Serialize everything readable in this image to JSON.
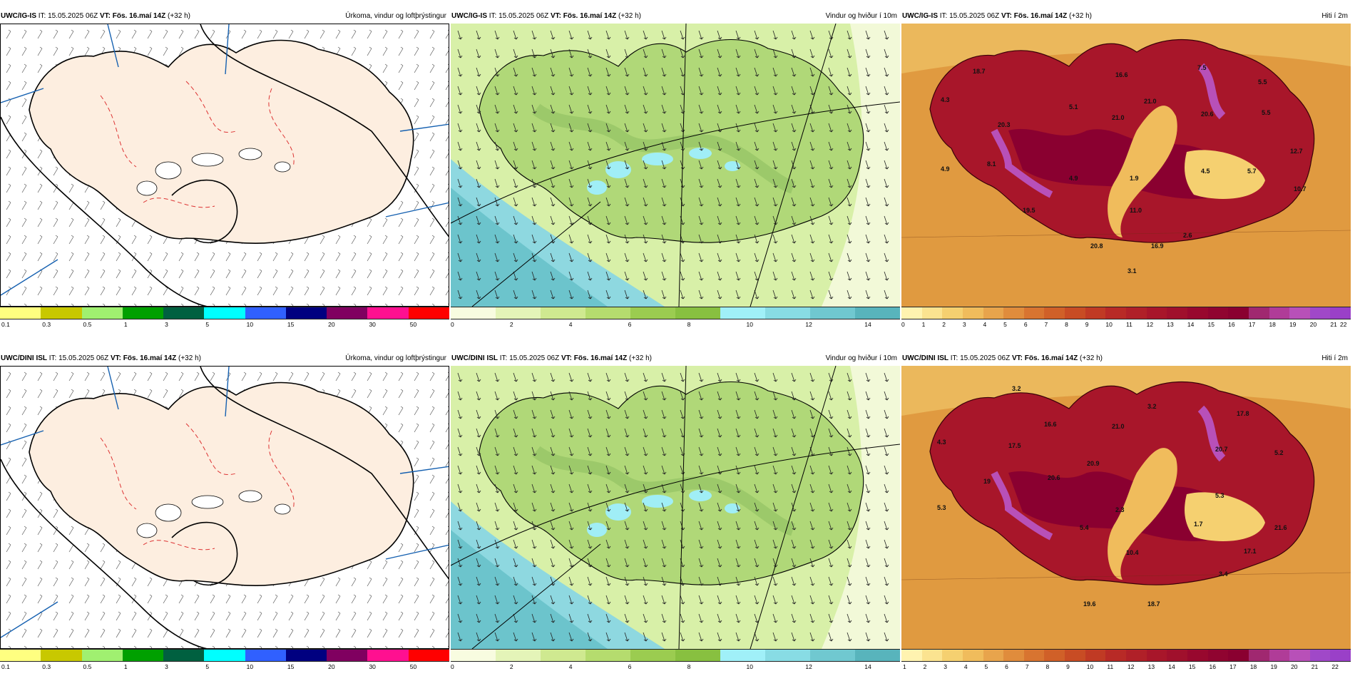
{
  "rows": [
    {
      "model": "UWC/IG-IS",
      "it_label": "IT:",
      "it_value": "15.05.2025 06Z",
      "vt_label": "VT:",
      "vt_value": "Fös. 16.maí 14Z",
      "lead": "(+32 h)"
    },
    {
      "model": "UWC/DINI ISL",
      "it_label": "IT:",
      "it_value": "15.05.2025 06Z",
      "vt_label": "VT:",
      "vt_value": "Fös. 16.maí 14Z",
      "lead": "(+32 h)"
    }
  ],
  "variables": {
    "precip": "Úrkoma, vindur og loftþrýstingur",
    "wind": "Vindur og hviður í 10m",
    "temp": "Hiti í 2m"
  },
  "scales": {
    "precip": {
      "ticks": [
        "0.1",
        "0.3",
        "0.5",
        "1",
        "3",
        "5",
        "10",
        "15",
        "20",
        "30",
        "50"
      ],
      "colors": [
        "#ffff80",
        "#c8c800",
        "#a0f070",
        "#00a000",
        "#006040",
        "#00ffff",
        "#3060ff",
        "#000080",
        "#800060",
        "#ff1090",
        "#ff0000"
      ]
    },
    "wind": {
      "ticks": [
        "0",
        "2",
        "4",
        "6",
        "8",
        "10",
        "12",
        "14"
      ],
      "colors": [
        "#f8fce0",
        "#e4f4b8",
        "#cfe990",
        "#b5dc6e",
        "#9bcc50",
        "#88c040",
        "#a0f0f8",
        "#88dce4",
        "#70c8d0",
        "#58b4bc"
      ]
    },
    "temp": {
      "ticks_top": [
        "0",
        "1",
        "2",
        "3",
        "4",
        "5",
        "6",
        "7",
        "8",
        "9",
        "10",
        "11",
        "12",
        "13",
        "14",
        "15",
        "16",
        "17",
        "18",
        "19",
        "20",
        "21",
        "22"
      ],
      "ticks_bottom": [
        "1",
        "2",
        "3",
        "4",
        "5",
        "6",
        "7",
        "8",
        "9",
        "10",
        "11",
        "12",
        "13",
        "14",
        "15",
        "16",
        "17",
        "18",
        "19",
        "20",
        "21",
        "22"
      ],
      "colors": [
        "#fff3b0",
        "#fbe390",
        "#f5d070",
        "#f0bc5c",
        "#e8a44c",
        "#e08c3c",
        "#d87430",
        "#d06028",
        "#c84c24",
        "#c03a24",
        "#b82a26",
        "#b02028",
        "#a8162a",
        "#a0102c",
        "#98082e",
        "#900430",
        "#8a0030",
        "#a02870",
        "#b03c98",
        "#b850b8",
        "#a048c8",
        "#9a40c8"
      ]
    }
  },
  "temp_labels": {
    "top": [
      "18.7",
      "4.3",
      "4.9",
      "20.3",
      "8.1",
      "19.5",
      "5.1",
      "4.9",
      "20.8",
      "16.6",
      "21.0",
      "21.0",
      "1.9",
      "11.0",
      "3.1",
      "16.9",
      "2.6",
      "7.5",
      "20.6",
      "4.5",
      "5.7",
      "5.5",
      "12.7",
      "10.7",
      "5.5"
    ],
    "bottom": [
      "3.2",
      "4.3",
      "17.5",
      "19",
      "5.3",
      "16.6",
      "20.6",
      "20.9",
      "5.4",
      "2.3",
      "10.4",
      "18.7",
      "19.6",
      "21.0",
      "3.2",
      "20.7",
      "5.3",
      "1.7",
      "3.4",
      "17.1",
      "21.6",
      "5.2",
      "17.8"
    ]
  }
}
